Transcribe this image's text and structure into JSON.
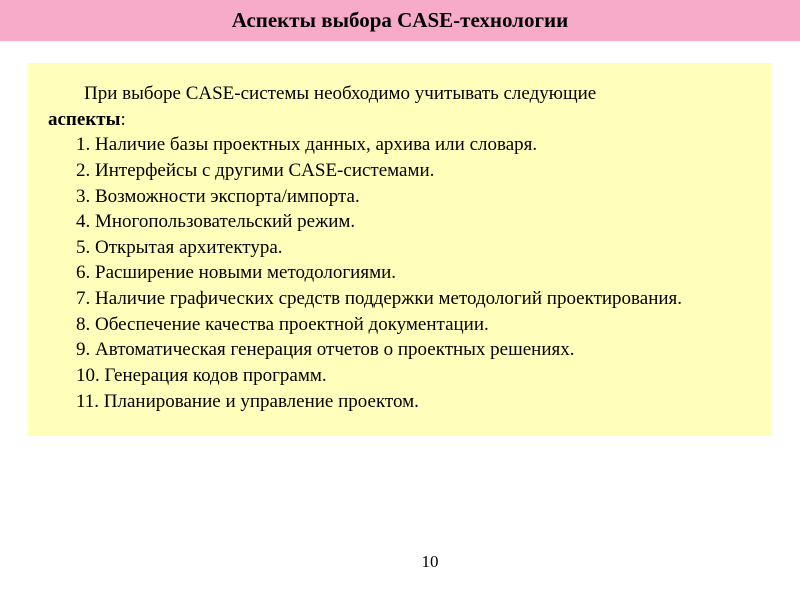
{
  "colors": {
    "title_bg": "#f8abc9",
    "content_bg": "#ffffbb",
    "page_bg": "#ffffff",
    "text": "#000000"
  },
  "typography": {
    "title_fontsize": 21,
    "body_fontsize": 19,
    "pagenum_fontsize": 17,
    "font_family": "Times New Roman"
  },
  "title": "Аспекты выбора  CASE-технологии",
  "intro": {
    "prefix": "При выборе CASE-системы необходимо учитывать следующие ",
    "bold": "аспекты",
    "suffix": ":"
  },
  "items": [
    "1. Наличие базы проектных данных, архива или словаря.",
    "2. Интерфейсы с другими CASE-системами.",
    "3. Возможности экспорта/импорта.",
    "4. Многопользовательский режим.",
    "5. Открытая архитектура.",
    "6. Расширение новыми методологиями.",
    "7. Наличие графических средств поддержки методологий проектирования.",
    "8. Обеспечение качества проектной документации.",
    "9. Автоматическая генерация отчетов о проектных решениях.",
    "10. Генерация кодов программ.",
    "11. Планирование и управление проектом."
  ],
  "page_number": "10"
}
